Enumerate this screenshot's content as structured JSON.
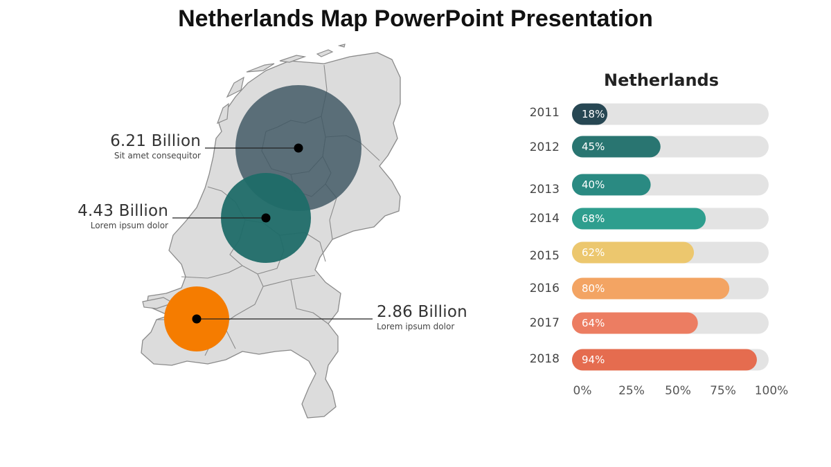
{
  "slide": {
    "title": "Netherlands Map PowerPoint Presentation"
  },
  "map": {
    "callouts": [
      {
        "value": "6.21 Billion",
        "caption": "Sit amet consequitor",
        "color": "#3d5561"
      },
      {
        "value": "4.43 Billion",
        "caption": "Lorem ipsum dolor",
        "color": "#1f6b68"
      },
      {
        "value": "2.86 Billion",
        "caption": "Lorem ipsum dolor",
        "color": "#f57c00"
      }
    ]
  },
  "chart_data": {
    "type": "bar",
    "orientation": "horizontal",
    "title": "Netherlands",
    "categories": [
      "2011",
      "2012",
      "2013",
      "2014",
      "2015",
      "2016",
      "2017",
      "2018"
    ],
    "values": [
      18,
      45,
      40,
      68,
      62,
      80,
      64,
      94
    ],
    "value_labels": [
      "18%",
      "45%",
      "40%",
      "68%",
      "62%",
      "80%",
      "64%",
      "94%"
    ],
    "colors": [
      "#274753",
      "#297571",
      "#2a8a82",
      "#2e9e8e",
      "#ecc76e",
      "#f3a463",
      "#ec7d62",
      "#e56c4f"
    ],
    "xlim": [
      0,
      100
    ],
    "x_ticks": [
      "0%",
      "25%",
      "50%",
      "75%",
      "100%"
    ],
    "track_color": "#e3e3e3",
    "grid": false,
    "legend": "none"
  }
}
